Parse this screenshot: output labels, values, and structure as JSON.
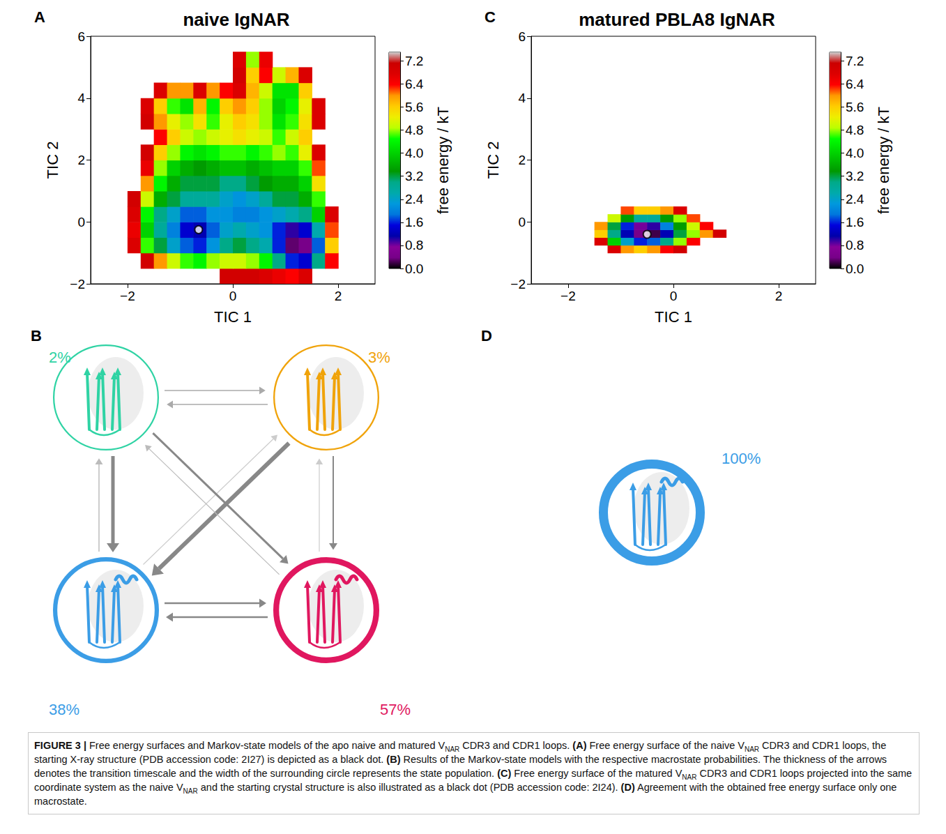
{
  "chart_data": [
    {
      "type": "heatmap",
      "panel": "A",
      "title": "naive IgNAR",
      "x_label": "TIC 1",
      "y_label": "TIC 2",
      "xlim": [
        -2.7,
        2.7
      ],
      "ylim": [
        -2,
        6
      ],
      "xticks": [
        {
          "value": -2,
          "label": "−2"
        },
        0,
        2
      ],
      "yticks": [
        {
          "value": -2,
          "label": "−2"
        },
        0,
        2,
        4,
        6
      ],
      "cells": {
        "x": [
          -1.875,
          -1.625,
          -1.375,
          -1.125,
          -0.875,
          -0.625,
          -0.375,
          -0.125,
          0.125,
          0.375,
          0.625,
          0.875,
          1.125,
          1.375,
          1.625,
          1.875
        ],
        "y": [
          -1.75,
          -1.25,
          -0.75,
          -0.25,
          0.25,
          0.75,
          1.25,
          1.75,
          2.25,
          2.75,
          3.25,
          3.75,
          4.25,
          4.75,
          5.25
        ],
        "z": [
          [
            null,
            null,
            null,
            null,
            null,
            null,
            null,
            7.0,
            7.0,
            7.0,
            6.8,
            6.6,
            6.4,
            6.8,
            null,
            null
          ],
          [
            null,
            7.0,
            6.0,
            5.0,
            4.6,
            4.4,
            4.8,
            5.0,
            5.0,
            4.8,
            4.4,
            3.0,
            1.6,
            1.4,
            3.0,
            6.4
          ],
          [
            6.8,
            4.6,
            3.2,
            2.4,
            1.8,
            1.6,
            2.2,
            3.0,
            3.2,
            3.0,
            2.6,
            1.6,
            0.3,
            0.4,
            1.8,
            5.6
          ],
          [
            6.6,
            4.0,
            2.8,
            2.0,
            1.4,
            1.2,
            1.8,
            2.4,
            2.6,
            2.4,
            2.2,
            1.6,
            1.0,
            1.4,
            2.6,
            6.2
          ],
          [
            6.8,
            4.4,
            3.0,
            2.4,
            1.8,
            1.8,
            2.2,
            2.2,
            2.0,
            2.0,
            2.2,
            2.4,
            2.6,
            3.0,
            4.0,
            6.8
          ],
          [
            7.0,
            5.0,
            3.6,
            3.2,
            2.8,
            2.8,
            2.8,
            2.4,
            2.2,
            2.4,
            2.8,
            3.2,
            3.2,
            3.6,
            4.6,
            null
          ],
          [
            null,
            6.0,
            4.4,
            3.6,
            3.2,
            3.2,
            3.2,
            3.0,
            3.0,
            3.2,
            3.4,
            3.6,
            3.6,
            4.0,
            5.4,
            null
          ],
          [
            null,
            6.6,
            4.8,
            4.0,
            3.6,
            3.4,
            3.6,
            3.8,
            3.8,
            3.6,
            3.8,
            4.0,
            4.0,
            4.6,
            6.2,
            null
          ],
          [
            null,
            7.0,
            5.6,
            4.8,
            4.4,
            4.2,
            4.4,
            4.6,
            4.6,
            4.4,
            4.6,
            4.8,
            4.6,
            5.2,
            6.8,
            null
          ],
          [
            null,
            null,
            6.4,
            5.6,
            5.0,
            4.8,
            5.0,
            5.2,
            5.4,
            5.2,
            5.0,
            4.6,
            5.0,
            5.6,
            null,
            null
          ],
          [
            null,
            7.0,
            6.0,
            5.2,
            4.8,
            5.4,
            4.6,
            5.2,
            5.6,
            5.4,
            4.8,
            4.2,
            4.6,
            5.4,
            6.8,
            null
          ],
          [
            null,
            6.8,
            5.6,
            4.6,
            4.2,
            5.8,
            4.4,
            5.6,
            6.0,
            5.6,
            4.8,
            4.0,
            4.4,
            5.2,
            6.8,
            null
          ],
          [
            null,
            null,
            6.8,
            6.0,
            6.0,
            6.8,
            6.0,
            6.4,
            6.8,
            5.8,
            5.0,
            4.2,
            4.2,
            5.6,
            null,
            null
          ],
          [
            null,
            null,
            null,
            null,
            null,
            null,
            null,
            null,
            7.0,
            5.6,
            6.4,
            5.0,
            5.8,
            6.8,
            null,
            null
          ],
          [
            null,
            null,
            null,
            null,
            null,
            null,
            null,
            null,
            6.8,
            4.8,
            6.6,
            null,
            null,
            null,
            null,
            null
          ]
        ]
      },
      "colorbar": {
        "label": "free energy / kT",
        "range": [
          0,
          7.5
        ],
        "ticks": [
          {
            "value": 0,
            "label": "0.0"
          },
          0.8,
          1.6,
          2.4,
          3.2,
          {
            "value": 4,
            "label": "4.0"
          },
          4.8,
          5.6,
          6.4,
          7.2
        ]
      },
      "start_structure": {
        "x": -0.65,
        "y": -0.25
      }
    },
    {
      "type": "heatmap",
      "panel": "C",
      "title": "matured PBLA8 IgNAR",
      "x_label": "TIC 1",
      "y_label": "TIC 2",
      "xlim": [
        -2.7,
        2.7
      ],
      "ylim": [
        -2,
        6
      ],
      "xticks": [
        {
          "value": -2,
          "label": "−2"
        },
        0,
        2
      ],
      "yticks": [
        {
          "value": -2,
          "label": "−2"
        },
        0,
        2,
        4,
        6
      ],
      "cells": {
        "x": [
          -1.375,
          -1.125,
          -0.875,
          -0.625,
          -0.375,
          -0.125,
          0.125,
          0.375,
          0.625,
          0.875
        ],
        "y": [
          -0.875,
          -0.625,
          -0.375,
          -0.125,
          0.125,
          0.375
        ],
        "z": [
          [
            null,
            6.8,
            6.0,
            5.6,
            6.0,
            6.4,
            7.0,
            null,
            null,
            null
          ],
          [
            6.8,
            4.0,
            2.4,
            1.6,
            1.8,
            3.0,
            4.8,
            6.4,
            null,
            null
          ],
          [
            5.6,
            3.0,
            1.2,
            0.4,
            0.2,
            1.2,
            3.2,
            4.8,
            6.0,
            7.0
          ],
          [
            6.0,
            3.2,
            1.6,
            0.8,
            1.0,
            2.0,
            3.4,
            5.0,
            6.4,
            null
          ],
          [
            null,
            5.0,
            3.4,
            2.8,
            2.8,
            3.4,
            4.8,
            6.2,
            null,
            null
          ],
          [
            null,
            null,
            6.2,
            5.6,
            5.6,
            6.0,
            6.8,
            null,
            null,
            null
          ]
        ]
      },
      "colorbar": {
        "label": "free energy / kT",
        "range": [
          0,
          7.5
        ],
        "ticks": [
          {
            "value": 0,
            "label": "0.0"
          },
          0.8,
          1.6,
          2.4,
          3.2,
          {
            "value": 4,
            "label": "4.0"
          },
          4.8,
          5.6,
          6.4,
          7.2
        ]
      },
      "start_structure": {
        "x": -0.5,
        "y": -0.4
      }
    }
  ],
  "diagrams": {
    "B": {
      "panel": "B",
      "states": [
        {
          "label": "2%",
          "population": 2,
          "color": "#2fd3a4"
        },
        {
          "label": "3%",
          "population": 3,
          "color": "#f0a30a"
        },
        {
          "label": "38%",
          "population": 38,
          "color": "#3b9de6"
        },
        {
          "label": "57%",
          "population": 57,
          "color": "#e0175f"
        }
      ]
    },
    "D": {
      "panel": "D",
      "states": [
        {
          "label": "100%",
          "population": 100,
          "color": "#3b9de6"
        }
      ]
    }
  },
  "caption": [
    {
      "text": "FIGURE 3 | ",
      "bold": true
    },
    {
      "text": "Free energy surfaces and Markov-state models of the apo naive and matured V"
    },
    {
      "text": "NAR",
      "sub": true
    },
    {
      "text": " CDR3 and CDR1 loops. "
    },
    {
      "text": "(A)",
      "bold": true
    },
    {
      "text": " Free energy surface of the naive V"
    },
    {
      "text": "NAR",
      "sub": true
    },
    {
      "text": " CDR3 and CDR1 loops, the starting X-ray structure (PDB accession code: 2I27) is depicted as a black dot. "
    },
    {
      "text": "(B)",
      "bold": true
    },
    {
      "text": " Results of the Markov-state models with the respective macrostate probabilities. The thickness of the arrows denotes the transition timescale and the width of the surrounding circle represents the state population. "
    },
    {
      "text": "(C)",
      "bold": true
    },
    {
      "text": " Free energy surface of the matured V"
    },
    {
      "text": "NAR",
      "sub": true
    },
    {
      "text": " CDR3 and CDR1 loops projected into the same coordinate system as the naive V"
    },
    {
      "text": "NAR",
      "sub": true
    },
    {
      "text": " and the starting crystal structure is also illustrated as a black dot (PDB accession code: 2I24). "
    },
    {
      "text": "(D)",
      "bold": true
    },
    {
      "text": " Agreement with the obtained free energy surface only one macrostate."
    }
  ]
}
